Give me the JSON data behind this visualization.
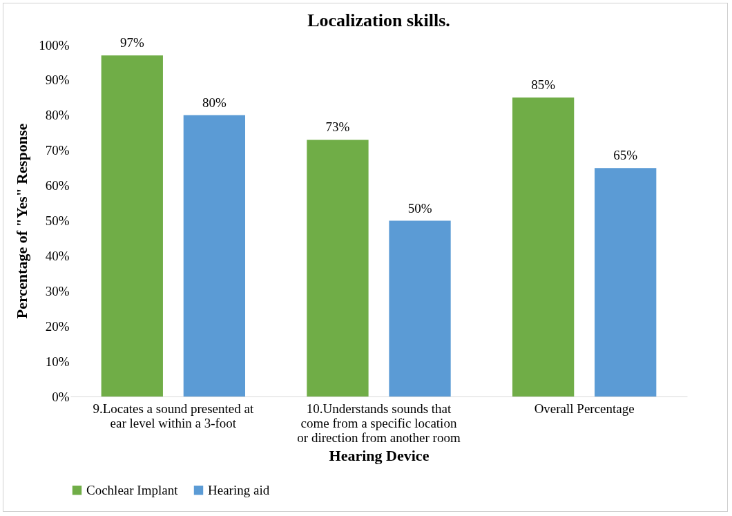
{
  "chart_data": {
    "type": "bar",
    "title": "Localization skills.",
    "xlabel": "Hearing Device",
    "ylabel": "Percentage of \"Yes\" Response",
    "categories": [
      "9.Locates a sound presented at ear level within a 3-foot",
      "10.Understands sounds that come from a specific location or direction from another room",
      "Overall Percentage"
    ],
    "series": [
      {
        "name": "Cochlear Implant",
        "color": "#70ad47",
        "values": [
          97,
          73,
          85
        ],
        "value_labels": [
          "97%",
          "73%",
          "85%"
        ]
      },
      {
        "name": "Hearing aid",
        "color": "#5b9bd5",
        "values": [
          80,
          50,
          65
        ],
        "value_labels": [
          "80%",
          "50%",
          "65%"
        ]
      }
    ],
    "ylim": [
      0,
      100
    ],
    "yticks": [
      {
        "value": 0,
        "label": "0%"
      },
      {
        "value": 10,
        "label": "10%"
      },
      {
        "value": 20,
        "label": "20%"
      },
      {
        "value": 30,
        "label": "30%"
      },
      {
        "value": 40,
        "label": "40%"
      },
      {
        "value": 50,
        "label": "50%"
      },
      {
        "value": 60,
        "label": "60%"
      },
      {
        "value": 70,
        "label": "70%"
      },
      {
        "value": 80,
        "label": "80%"
      },
      {
        "value": 90,
        "label": "90%"
      },
      {
        "value": 100,
        "label": "100%"
      }
    ],
    "grid": false,
    "legend": "bottom"
  }
}
